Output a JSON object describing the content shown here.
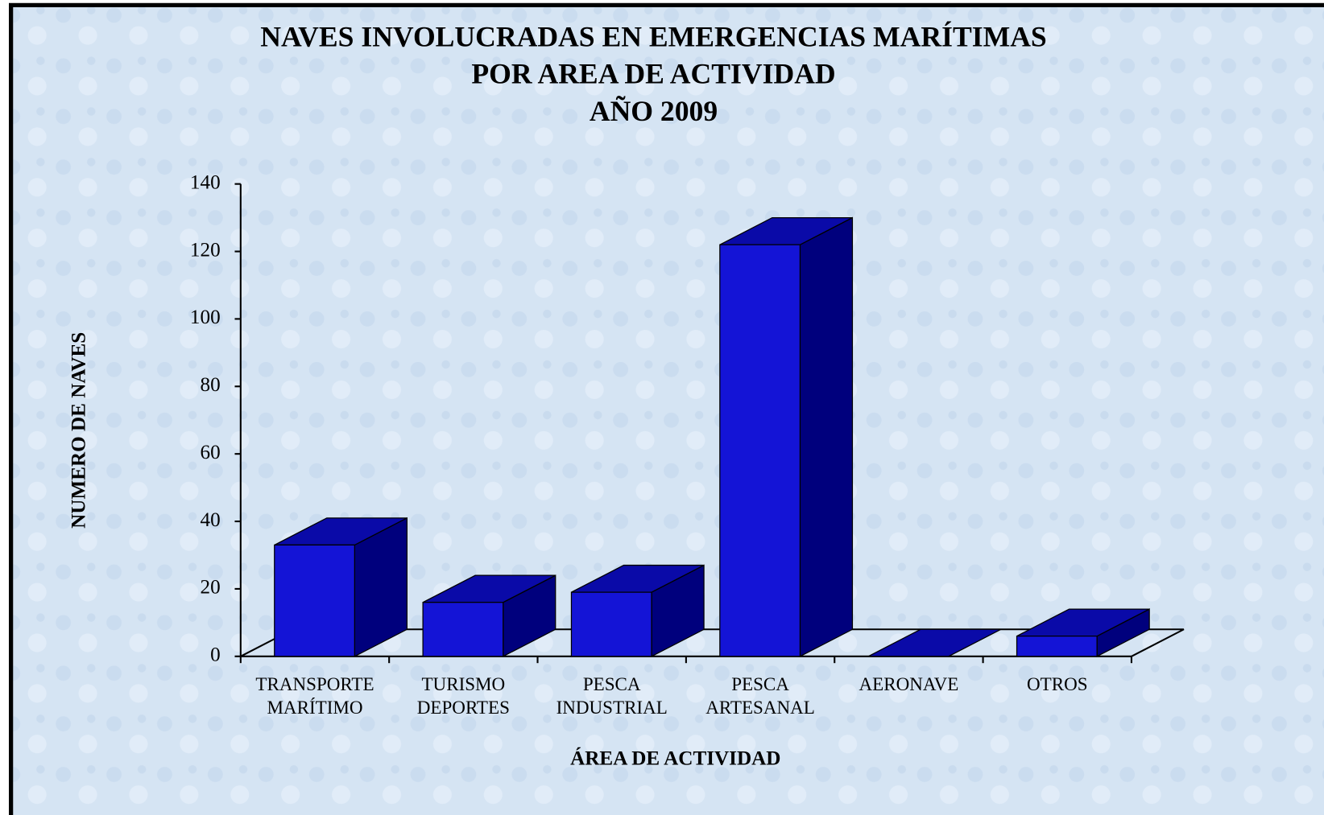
{
  "chart_data": {
    "type": "bar3d",
    "title": [
      "NAVES INVOLUCRADAS EN EMERGENCIAS  MARÍTIMAS",
      "POR AREA DE ACTIVIDAD",
      "AÑO 2009"
    ],
    "y_label": "NUMERO DE NAVES",
    "x_label": "ÁREA DE ACTIVIDAD",
    "categories": [
      [
        "TRANSPORTE",
        "MARÍTIMO"
      ],
      [
        "TURISMO",
        "DEPORTES"
      ],
      [
        "PESCA",
        "INDUSTRIAL"
      ],
      [
        "PESCA",
        "ARTESANAL"
      ],
      [
        "AERONAVE"
      ],
      [
        "OTROS"
      ]
    ],
    "values": [
      33,
      16,
      19,
      122,
      0,
      6
    ],
    "color": "#1414d6",
    "ylim": [
      0,
      140
    ],
    "yticks": [
      0,
      20,
      40,
      60,
      80,
      100,
      120,
      140
    ]
  }
}
